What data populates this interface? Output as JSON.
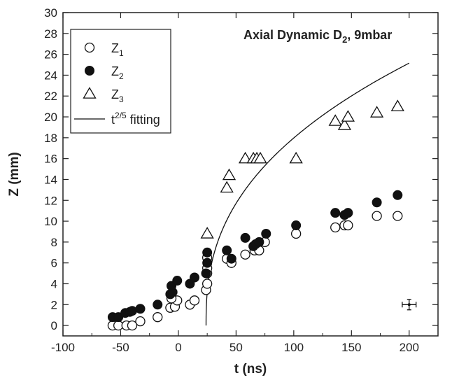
{
  "chart_data": {
    "type": "scatter",
    "title": "Axial Dynamic D",
    "title_sub": "2",
    "title_tail": ", 9mbar",
    "xlabel": "t (ns)",
    "ylabel": "Z (mm)",
    "xlim": [
      -100,
      225
    ],
    "ylim": [
      -1,
      30
    ],
    "xticks": [
      -100,
      -50,
      0,
      50,
      100,
      150,
      200
    ],
    "yticks": [
      0,
      2,
      4,
      6,
      8,
      10,
      12,
      14,
      16,
      18,
      20,
      22,
      24,
      26,
      28,
      30
    ],
    "grid": false,
    "legend_position": "top-left",
    "series": [
      {
        "name": "Z",
        "name_sub": "1",
        "marker": "open-circle",
        "points": [
          [
            -57,
            0
          ],
          [
            -52,
            0
          ],
          [
            -45,
            0
          ],
          [
            -40,
            0
          ],
          [
            -33,
            0.4
          ],
          [
            -18,
            0.8
          ],
          [
            -7,
            1.7
          ],
          [
            -3,
            1.8
          ],
          [
            -1,
            2.4
          ],
          [
            -6,
            2.6
          ],
          [
            10,
            2
          ],
          [
            14,
            2.4
          ],
          [
            24,
            3.4
          ],
          [
            25,
            4
          ],
          [
            25,
            5
          ],
          [
            25,
            5.5
          ],
          [
            25,
            6.5
          ],
          [
            42,
            6.4
          ],
          [
            46,
            6
          ],
          [
            58,
            6.8
          ],
          [
            66,
            7.2
          ],
          [
            70,
            7.2
          ],
          [
            75,
            8
          ],
          [
            102,
            8.8
          ],
          [
            136,
            9.4
          ],
          [
            144,
            9.6
          ],
          [
            147,
            9.6
          ],
          [
            172,
            10.5
          ],
          [
            190,
            10.5
          ]
        ]
      },
      {
        "name": "Z",
        "name_sub": "2",
        "marker": "filled-circle",
        "points": [
          [
            -57,
            0.8
          ],
          [
            -52,
            0.8
          ],
          [
            -46,
            1.2
          ],
          [
            -42,
            1.3
          ],
          [
            -40,
            1.4
          ],
          [
            -33,
            1.6
          ],
          [
            -18,
            2
          ],
          [
            -7,
            3
          ],
          [
            -5,
            3.2
          ],
          [
            -6,
            3.8
          ],
          [
            -1,
            4.3
          ],
          [
            10,
            4
          ],
          [
            14,
            4.6
          ],
          [
            24,
            5
          ],
          [
            25,
            6
          ],
          [
            25,
            7
          ],
          [
            42,
            7.2
          ],
          [
            46,
            6.4
          ],
          [
            58,
            8.4
          ],
          [
            65,
            7.6
          ],
          [
            67,
            7.8
          ],
          [
            70,
            8
          ],
          [
            76,
            8.8
          ],
          [
            102,
            9.6
          ],
          [
            136,
            10.8
          ],
          [
            144,
            10.6
          ],
          [
            147,
            10.8
          ],
          [
            172,
            11.8
          ],
          [
            190,
            12.5
          ]
        ]
      },
      {
        "name": "Z",
        "name_sub": "3",
        "marker": "open-triangle",
        "points": [
          [
            25,
            8.8
          ],
          [
            42,
            13.2
          ],
          [
            44,
            14.4
          ],
          [
            58,
            16
          ],
          [
            65,
            16
          ],
          [
            68,
            16
          ],
          [
            71,
            16
          ],
          [
            102,
            16
          ],
          [
            136,
            19.6
          ],
          [
            144,
            19.2
          ],
          [
            147,
            20
          ],
          [
            172,
            20.4
          ],
          [
            190,
            21
          ]
        ]
      },
      {
        "name": "t",
        "name_sup": "2/5",
        "name_tail": " fitting",
        "marker": "line",
        "fit": {
          "t0": 24,
          "scale": 3.18,
          "exponent": 0.4,
          "x_start": 24,
          "x_end": 200
        }
      }
    ],
    "error_bar": {
      "x": 200,
      "y": 2,
      "x_err": 6,
      "y_err": 0.5
    }
  }
}
